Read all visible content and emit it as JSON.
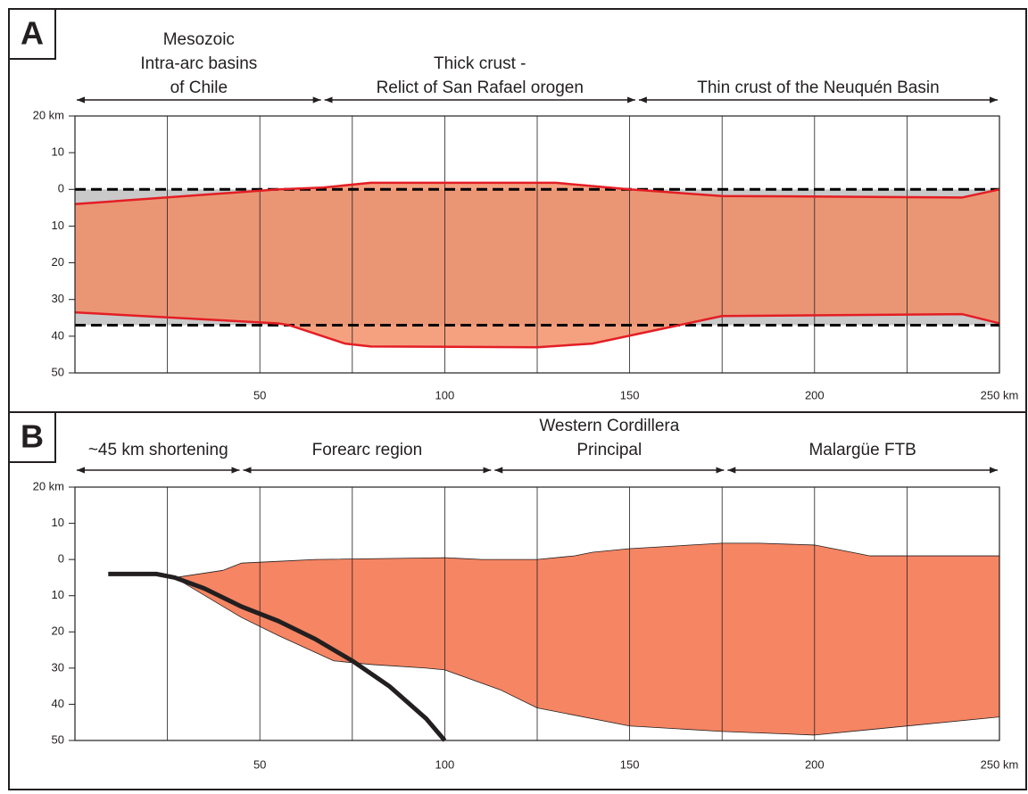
{
  "chart_data": [
    {
      "type": "crust-profile",
      "panel": "A",
      "spans": [
        {
          "lines": [
            "Mesozoic",
            "Intra-arc basins",
            "of Chile"
          ],
          "from": 0,
          "to": 67
        },
        {
          "lines": [
            "Thick crust -",
            "Relict of San Rafael orogen"
          ],
          "from": 67,
          "to": 152
        },
        {
          "lines": [
            "Thin crust of the Neuquén Basin"
          ],
          "from": 152,
          "to": 250
        }
      ],
      "xlim": [
        0,
        250
      ],
      "ylim": [
        -50,
        20
      ],
      "xticks": [
        50,
        100,
        150,
        200,
        {
          "value": 250,
          "label": "250 km"
        }
      ],
      "yticks": [
        {
          "value": 20,
          "label": "20 km"
        },
        10,
        0,
        {
          "value": -10,
          "label": "10"
        },
        {
          "value": -20,
          "label": "20"
        },
        {
          "value": -30,
          "label": "30"
        },
        {
          "value": -40,
          "label": "40"
        },
        {
          "value": -50,
          "label": "50"
        }
      ],
      "xgrid": [
        25,
        50,
        75,
        100,
        125,
        150,
        175,
        200,
        225
      ],
      "reference_lines": [
        0,
        -37
      ],
      "reference_color": "#000000",
      "reference_fill": "#c9c9c9",
      "fill": "#f28a60",
      "upper": {
        "x": [
          0,
          55,
          67,
          80,
          130,
          150,
          175,
          240,
          250
        ],
        "values": [
          -4,
          0,
          0.5,
          1.8,
          1.8,
          0,
          -1.8,
          -2.2,
          0
        ],
        "color": "#e31e24"
      },
      "lower": {
        "x": [
          0,
          55,
          58,
          73,
          80,
          125,
          140,
          175,
          240,
          250
        ],
        "values": [
          -33.5,
          -36.5,
          -37,
          -42,
          -42.8,
          -43,
          -42,
          -34.5,
          -34,
          -36.5
        ],
        "color": "#e31e24"
      }
    },
    {
      "type": "crust-profile",
      "panel": "B",
      "spans": [
        {
          "lines": [
            "~45 km shortening"
          ],
          "from": 0,
          "to": 45
        },
        {
          "lines": [
            "Forearc region"
          ],
          "from": 45,
          "to": 113
        },
        {
          "lines": [
            "Western Cordillera",
            "Principal"
          ],
          "from": 113,
          "to": 176
        },
        {
          "lines": [
            "Malargüe FTB"
          ],
          "from": 176,
          "to": 250
        }
      ],
      "xlim": [
        0,
        250
      ],
      "ylim": [
        -50,
        20
      ],
      "xticks": [
        50,
        100,
        150,
        200,
        {
          "value": 250,
          "label": "250 km"
        }
      ],
      "yticks": [
        {
          "value": 20,
          "label": "20 km"
        },
        10,
        0,
        {
          "value": -10,
          "label": "10"
        },
        {
          "value": -20,
          "label": "20"
        },
        {
          "value": -30,
          "label": "30"
        },
        {
          "value": -40,
          "label": "40"
        },
        {
          "value": -50,
          "label": "50"
        }
      ],
      "xgrid": [
        25,
        50,
        75,
        100,
        125,
        150,
        175,
        200,
        225
      ],
      "fill": "#f58563",
      "upper": {
        "x": [
          27,
          40,
          45,
          55,
          65,
          100,
          110,
          125,
          135,
          140,
          150,
          175,
          185,
          200,
          210,
          215,
          240,
          250
        ],
        "values": [
          -5,
          -3,
          -1,
          -0.5,
          0,
          0.5,
          0,
          0,
          1,
          2,
          3,
          4.5,
          4.5,
          4,
          2,
          1,
          1,
          1
        ],
        "color": "#231f20"
      },
      "lower": {
        "x": [
          27,
          45,
          55,
          70,
          80,
          95,
          100,
          115,
          125,
          150,
          175,
          200,
          215,
          250
        ],
        "values": [
          -5,
          -16,
          -21,
          -28,
          -29,
          -30,
          -30.5,
          -36,
          -41,
          -46,
          -47.5,
          -48.5,
          -47,
          -43.5
        ],
        "color": "#231f20"
      },
      "slab": {
        "x": [
          9,
          22,
          27,
          35,
          45,
          55,
          65,
          75,
          85,
          95,
          100
        ],
        "values": [
          -4,
          -4,
          -5,
          -8,
          -13,
          -17,
          -22,
          -28,
          -35,
          -44,
          -50
        ],
        "color": "#231f20"
      }
    }
  ]
}
